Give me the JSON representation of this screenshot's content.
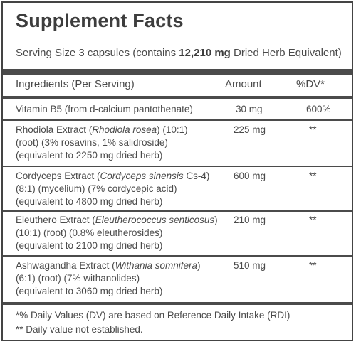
{
  "title": "Supplement Facts",
  "serving": {
    "prefix": "Serving Size 3 capsules (contains ",
    "bold": "12,210 mg",
    "suffix": " Dried Herb Equivalent)"
  },
  "headers": {
    "ingredients": "Ingredients (Per Serving)",
    "amount": "Amount",
    "dv": "%DV*"
  },
  "rows": [
    {
      "lines": [
        "Vitamin B5 (from d-calcium pantothenate)"
      ],
      "amount": "30 mg",
      "dv": "600%"
    },
    {
      "name_pre": "Rhodiola Extract (",
      "name_italic": "Rhodiola rosea",
      "name_post": ") (10:1)",
      "lines": [
        "(root) (3% rosavins, 1% salidroside)",
        "(equivalent to 2250 mg dried herb)"
      ],
      "amount": "225 mg",
      "dv": "**"
    },
    {
      "name_pre": "Cordyceps Extract (",
      "name_italic": "Cordyceps sinensis",
      "name_post": " Cs-4)",
      "lines": [
        "(8:1) (mycelium) (7% cordycepic acid)",
        "(equivalent to 4800 mg dried herb)"
      ],
      "amount": "600 mg",
      "dv": "**"
    },
    {
      "name_pre": "Eleuthero Extract (",
      "name_italic": "Eleutherococcus senticosus",
      "name_post": ")",
      "lines": [
        "(10:1) (root) (0.8% eleutherosides)",
        "(equivalent to 2100 mg dried herb)"
      ],
      "amount": "210 mg",
      "dv": "**"
    },
    {
      "name_pre": "Ashwagandha Extract (",
      "name_italic": "Withania somnifera",
      "name_post": ")",
      "lines": [
        "(6:1) (root) (7% withanolides)",
        "(equivalent to 3060 mg dried herb)"
      ],
      "amount": "510 mg",
      "dv": "**"
    }
  ],
  "footnotes": [
    "*% Daily Values (DV) are based on Reference Daily Intake (RDI)",
    "** Daily value not established."
  ]
}
